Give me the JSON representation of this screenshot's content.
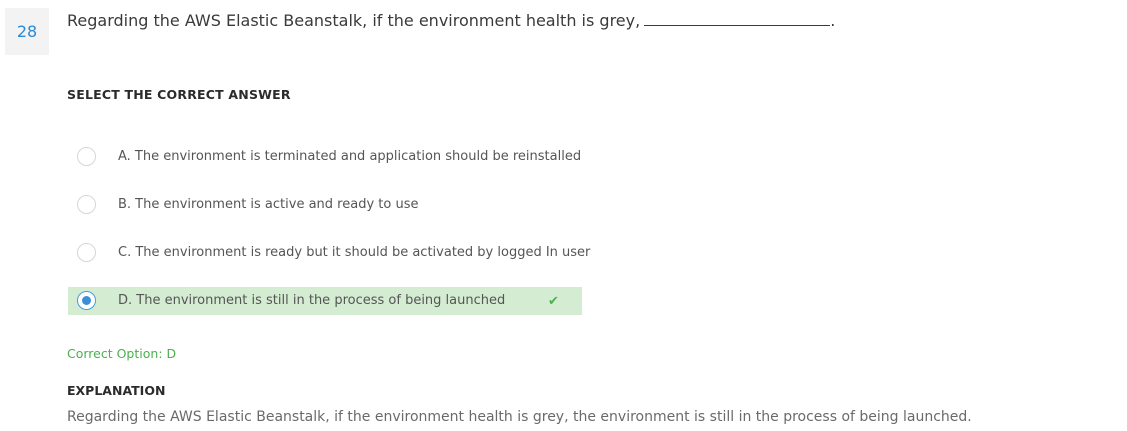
{
  "question": {
    "number": "28",
    "text": "Regarding the AWS Elastic Beanstalk, if the environment health is grey,",
    "trailing": "."
  },
  "select_header": "SELECT THE CORRECT ANSWER",
  "options": [
    {
      "text": "A. The environment is terminated and application should be reinstalled",
      "selected": false
    },
    {
      "text": "B. The environment is active and ready to use",
      "selected": false
    },
    {
      "text": "C. The environment is ready but it should be activated by logged In user",
      "selected": false
    },
    {
      "text": "D. The environment is still in the process of being launched",
      "selected": true
    }
  ],
  "check_mark": "✔",
  "correct_option": "Correct Option: D",
  "explanation": {
    "header": "EXPLANATION",
    "text": "Regarding the AWS Elastic Beanstalk, if the environment health is grey, the environment is still in the process of being launched."
  },
  "colors": {
    "accent": "#2a8ad6",
    "correct_green": "#4caf50",
    "selected_bg": "#d4ecd2"
  }
}
